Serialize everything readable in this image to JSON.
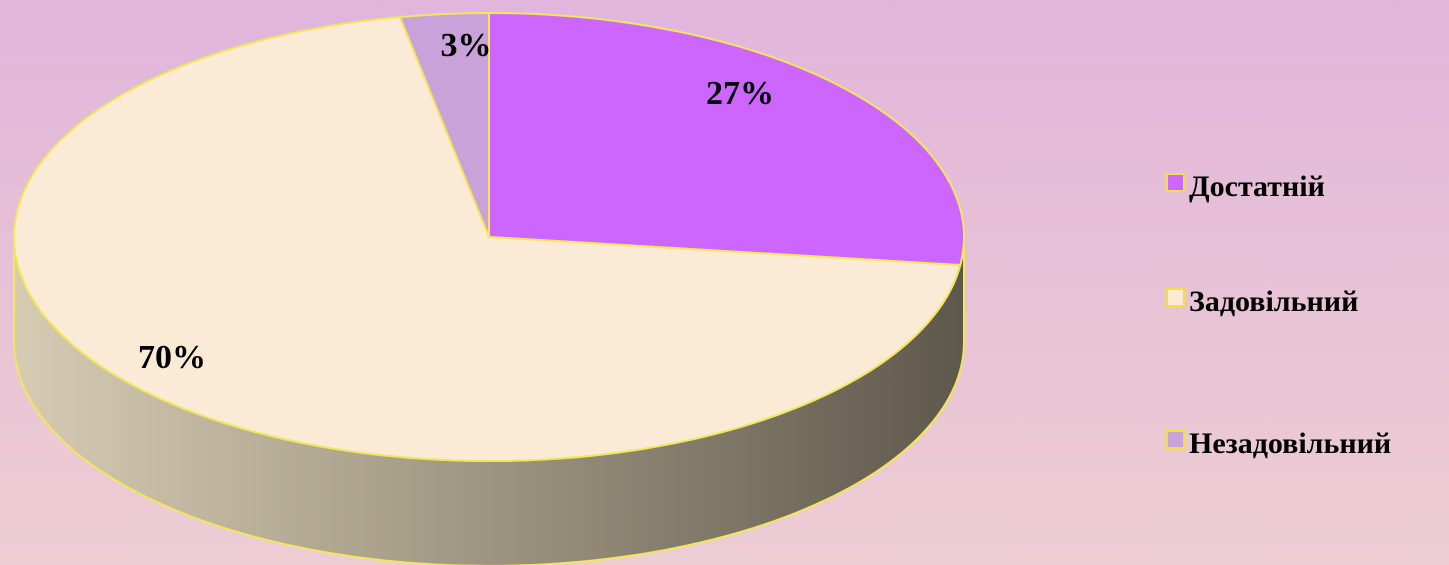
{
  "chart_data": {
    "type": "pie",
    "title": "",
    "categories": [
      "Достатній",
      "Задовільний",
      "Незадовільний"
    ],
    "values": [
      27,
      70,
      3
    ],
    "labels": [
      "27%",
      "70%",
      "3%"
    ],
    "legend_position": "right",
    "colors": [
      "#cc66ff",
      "#fbebd6",
      "#c8a2d8"
    ],
    "colors_note_free": true
  }
}
